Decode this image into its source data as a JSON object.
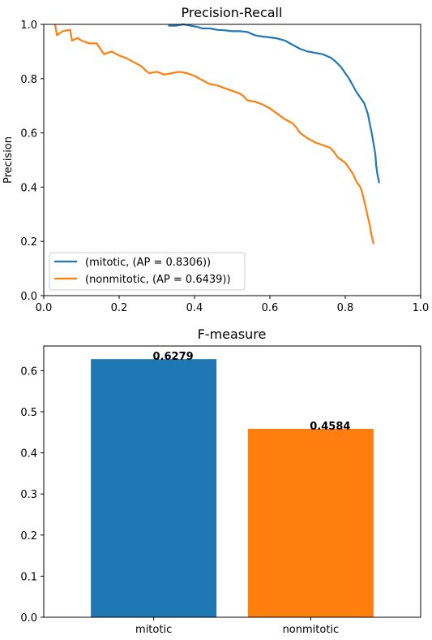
{
  "chart_data": [
    {
      "type": "line",
      "title": "Precision-Recall",
      "xlabel": "",
      "ylabel": "Precision",
      "xlim": [
        0,
        1
      ],
      "ylim": [
        0,
        1
      ],
      "x_ticks": [
        "0.0",
        "0.2",
        "0.4",
        "0.6",
        "0.8",
        "1.0"
      ],
      "y_ticks": [
        "0.0",
        "0.2",
        "0.4",
        "0.6",
        "0.8",
        "1.0"
      ],
      "grid": false,
      "legend_position": "bottom-left",
      "series": [
        {
          "name": "(mitotic, (AP = 0.8306))",
          "color": "#1f77b4",
          "points": [
            [
              0.33,
              0.995
            ],
            [
              0.35,
              0.995
            ],
            [
              0.37,
              1.0
            ],
            [
              0.39,
              0.995
            ],
            [
              0.41,
              0.99
            ],
            [
              0.42,
              0.985
            ],
            [
              0.44,
              0.985
            ],
            [
              0.46,
              0.98
            ],
            [
              0.48,
              0.978
            ],
            [
              0.5,
              0.975
            ],
            [
              0.52,
              0.975
            ],
            [
              0.54,
              0.972
            ],
            [
              0.56,
              0.96
            ],
            [
              0.58,
              0.955
            ],
            [
              0.6,
              0.952
            ],
            [
              0.62,
              0.948
            ],
            [
              0.64,
              0.94
            ],
            [
              0.66,
              0.925
            ],
            [
              0.68,
              0.91
            ],
            [
              0.7,
              0.9
            ],
            [
              0.72,
              0.895
            ],
            [
              0.74,
              0.89
            ],
            [
              0.76,
              0.878
            ],
            [
              0.77,
              0.868
            ],
            [
              0.78,
              0.855
            ],
            [
              0.79,
              0.84
            ],
            [
              0.8,
              0.82
            ],
            [
              0.81,
              0.8
            ],
            [
              0.82,
              0.775
            ],
            [
              0.83,
              0.75
            ],
            [
              0.84,
              0.73
            ],
            [
              0.85,
              0.71
            ],
            [
              0.86,
              0.67
            ],
            [
              0.865,
              0.635
            ],
            [
              0.87,
              0.6
            ],
            [
              0.875,
              0.56
            ],
            [
              0.88,
              0.52
            ],
            [
              0.882,
              0.48
            ],
            [
              0.885,
              0.45
            ],
            [
              0.888,
              0.43
            ],
            [
              0.89,
              0.415
            ]
          ]
        },
        {
          "name": "(nonmitotic, (AP = 0.6439))",
          "color": "#ff7f0e",
          "points": [
            [
              0.03,
              1.0
            ],
            [
              0.035,
              0.96
            ],
            [
              0.05,
              0.975
            ],
            [
              0.07,
              0.98
            ],
            [
              0.075,
              0.94
            ],
            [
              0.09,
              0.95
            ],
            [
              0.1,
              0.94
            ],
            [
              0.12,
              0.93
            ],
            [
              0.14,
              0.93
            ],
            [
              0.15,
              0.91
            ],
            [
              0.16,
              0.89
            ],
            [
              0.18,
              0.9
            ],
            [
              0.2,
              0.885
            ],
            [
              0.22,
              0.875
            ],
            [
              0.24,
              0.86
            ],
            [
              0.26,
              0.845
            ],
            [
              0.27,
              0.83
            ],
            [
              0.28,
              0.82
            ],
            [
              0.3,
              0.825
            ],
            [
              0.32,
              0.815
            ],
            [
              0.34,
              0.82
            ],
            [
              0.36,
              0.825
            ],
            [
              0.38,
              0.82
            ],
            [
              0.4,
              0.81
            ],
            [
              0.42,
              0.795
            ],
            [
              0.44,
              0.78
            ],
            [
              0.46,
              0.775
            ],
            [
              0.48,
              0.765
            ],
            [
              0.5,
              0.755
            ],
            [
              0.52,
              0.745
            ],
            [
              0.53,
              0.735
            ],
            [
              0.54,
              0.72
            ],
            [
              0.56,
              0.715
            ],
            [
              0.58,
              0.705
            ],
            [
              0.6,
              0.69
            ],
            [
              0.62,
              0.67
            ],
            [
              0.64,
              0.65
            ],
            [
              0.66,
              0.635
            ],
            [
              0.67,
              0.62
            ],
            [
              0.68,
              0.6
            ],
            [
              0.7,
              0.58
            ],
            [
              0.72,
              0.565
            ],
            [
              0.74,
              0.555
            ],
            [
              0.76,
              0.545
            ],
            [
              0.77,
              0.53
            ],
            [
              0.78,
              0.51
            ],
            [
              0.8,
              0.49
            ],
            [
              0.81,
              0.47
            ],
            [
              0.82,
              0.45
            ],
            [
              0.83,
              0.42
            ],
            [
              0.84,
              0.4
            ],
            [
              0.845,
              0.38
            ],
            [
              0.85,
              0.35
            ],
            [
              0.855,
              0.32
            ],
            [
              0.86,
              0.29
            ],
            [
              0.865,
              0.26
            ],
            [
              0.87,
              0.22
            ],
            [
              0.875,
              0.19
            ]
          ]
        }
      ]
    },
    {
      "type": "bar",
      "title": "F-measure",
      "xlabel": "",
      "ylabel": "",
      "ylim": [
        0,
        0.66
      ],
      "y_ticks": [
        "0.0",
        "0.1",
        "0.2",
        "0.3",
        "0.4",
        "0.5",
        "0.6"
      ],
      "grid": false,
      "categories": [
        "mitotic",
        "nonmitotic"
      ],
      "values": [
        0.6279,
        0.4584
      ],
      "value_labels": [
        "0.6279",
        "0.4584"
      ],
      "colors": [
        "#1f77b4",
        "#ff7f0e"
      ]
    }
  ]
}
